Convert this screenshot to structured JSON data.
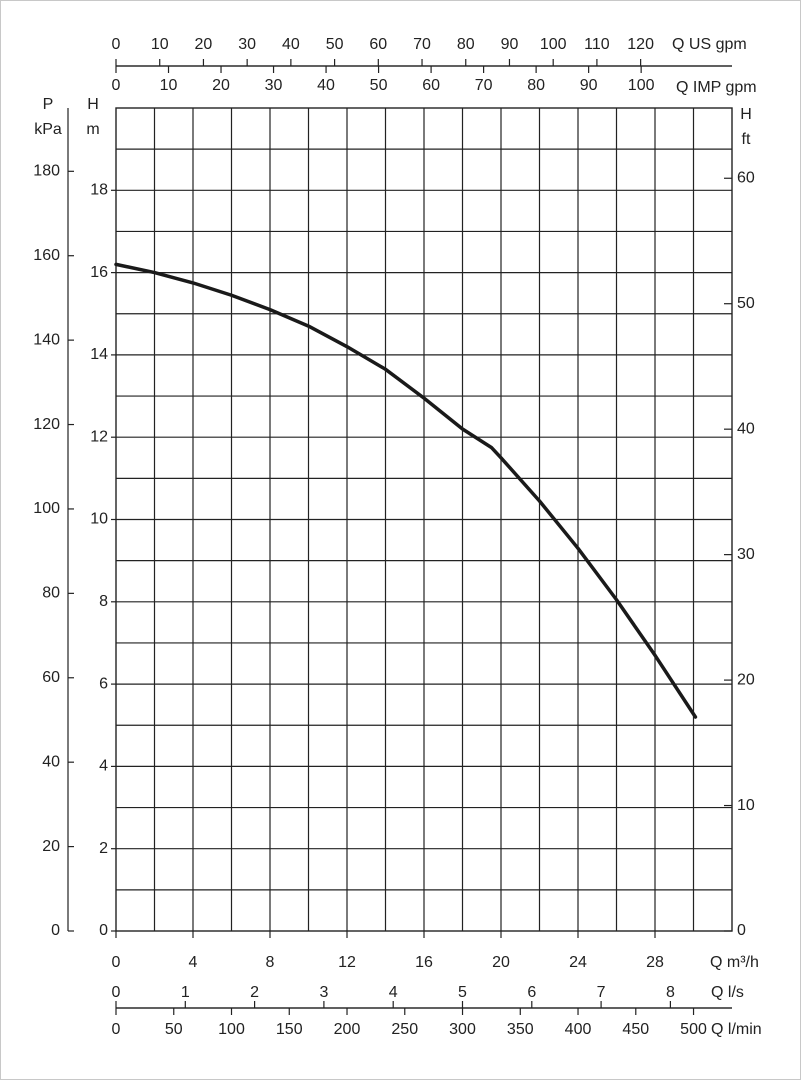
{
  "chart_data": {
    "type": "line",
    "x": [
      0,
      2,
      4,
      6,
      8,
      10,
      12,
      14,
      16,
      18,
      19.5,
      20,
      22,
      24,
      26,
      28,
      30.1
    ],
    "series": [
      {
        "color": "#1a1a1a",
        "values": [
          16.2,
          16.0,
          15.75,
          15.45,
          15.1,
          14.7,
          14.2,
          13.65,
          12.95,
          12.2,
          11.75,
          11.5,
          10.45,
          9.3,
          8.05,
          6.7,
          5.2
        ]
      }
    ],
    "x_label_lines": [
      "Q m³/h"
    ],
    "xlim": [
      0,
      32
    ],
    "xticks": [
      0,
      4,
      8,
      12,
      16,
      20,
      24,
      28
    ],
    "y_label_lines": [
      "H",
      "m"
    ],
    "ylim": [
      0,
      20
    ],
    "yticks": [
      0,
      2,
      4,
      6,
      8,
      10,
      12,
      14,
      16,
      18
    ],
    "y2_label_lines": [
      "H",
      "ft"
    ],
    "y2lim": [
      0,
      65.6
    ],
    "y2ticks": [
      0,
      10,
      20,
      30,
      40,
      50,
      60
    ],
    "xgrid": [
      2,
      4,
      6,
      8,
      10,
      12,
      14,
      16,
      18,
      20,
      22,
      24,
      26,
      28,
      30
    ],
    "ygrid": [
      1,
      2,
      3,
      4,
      5,
      6,
      7,
      8,
      9,
      10,
      11,
      12,
      13,
      14,
      15,
      16,
      17,
      18,
      19
    ],
    "extra_axes": [
      {
        "label_lines": [
          "Q US gpm"
        ],
        "lim": [
          0,
          140.9
        ],
        "ticks": [
          0,
          10,
          20,
          30,
          40,
          50,
          60,
          70,
          80,
          90,
          100,
          110,
          120
        ]
      },
      {
        "label_lines": [
          "Q IMP gpm"
        ],
        "lim": [
          0,
          117.3
        ],
        "ticks": [
          0,
          10,
          20,
          30,
          40,
          50,
          60,
          70,
          80,
          90,
          100
        ]
      },
      {
        "label_lines": [
          "Q l/s"
        ],
        "lim": [
          0,
          8.889
        ],
        "ticks": [
          0,
          1,
          2,
          3,
          4,
          5,
          6,
          7,
          8
        ]
      },
      {
        "label_lines": [
          "Q l/min"
        ],
        "lim": [
          0,
          533.3
        ],
        "ticks": [
          0,
          50,
          100,
          150,
          200,
          250,
          300,
          350,
          400,
          450,
          500
        ]
      },
      {
        "label_lines": [
          "P",
          "kPa"
        ],
        "lim": [
          0,
          195
        ],
        "ticks": [
          0,
          20,
          40,
          60,
          80,
          100,
          120,
          140,
          160,
          180
        ]
      }
    ]
  }
}
